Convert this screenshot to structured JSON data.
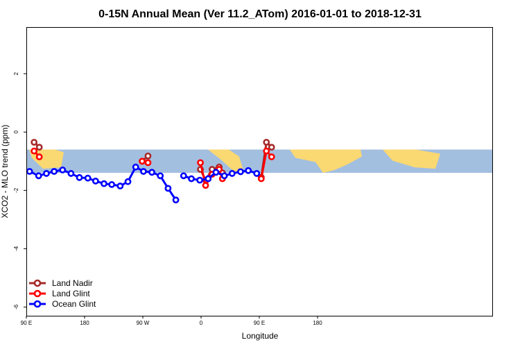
{
  "chart_data": {
    "type": "line",
    "title": "0-15N Annual Mean (Ver 11.2_ATom)   2016-01-01 to 2018-12-31",
    "xlabel": "Longitude",
    "ylabel": "XCO2 - MLO trend (ppm)",
    "xlim": [
      90,
      450
    ],
    "ylim": [
      -6.3,
      3.6
    ],
    "x_ticks": [
      {
        "value": 90,
        "label": "90 E"
      },
      {
        "value": 180,
        "label": "180"
      },
      {
        "value": 270,
        "label": "90 W"
      },
      {
        "value": 360,
        "label": "0"
      },
      {
        "value": 450,
        "label": "90 E"
      },
      {
        "value": 540,
        "label": "180"
      }
    ],
    "y_ticks": [
      {
        "value": 2,
        "label": "2"
      },
      {
        "value": 0,
        "label": "0"
      },
      {
        "value": -2,
        "label": "-2"
      },
      {
        "value": -4,
        "label": "-4"
      },
      {
        "value": -6,
        "label": "-6"
      }
    ],
    "legend_position": "bottom-left",
    "background_band": {
      "y_range": [
        -0.6,
        -1.4
      ],
      "color": "#a3bfe0",
      "land_color": "#fad872"
    },
    "series": [
      {
        "name": "Land Nadir",
        "color": "#a52a2a",
        "segments": [
          [
            [
              102,
              -0.35
            ],
            [
              110,
              -0.52
            ]
          ],
          [
            [
              269,
              -1.0
            ],
            [
              278,
              -0.82
            ]
          ],
          [
            [
              359,
              -1.28
            ],
            [
              367,
              -1.65
            ],
            [
              377,
              -1.28
            ],
            [
              388,
              -1.2
            ],
            [
              393,
              -1.4
            ]
          ],
          [
            [
              453,
              -1.55
            ],
            [
              461,
              -0.35
            ],
            [
              469,
              -0.52
            ]
          ]
        ]
      },
      {
        "name": "Land Glint",
        "color": "#ff0000",
        "segments": [
          [
            [
              102,
              -0.65
            ],
            [
              110,
              -0.85
            ]
          ],
          [
            [
              269,
              -1.0
            ],
            [
              278,
              -1.05
            ]
          ],
          [
            [
              359,
              -1.05
            ],
            [
              367,
              -1.83
            ],
            [
              377,
              -1.45
            ],
            [
              388,
              -1.28
            ],
            [
              393,
              -1.6
            ]
          ],
          [
            [
              453,
              -1.6
            ],
            [
              461,
              -0.65
            ],
            [
              469,
              -0.85
            ]
          ]
        ]
      },
      {
        "name": "Ocean Glint",
        "color": "#0000ff",
        "segments": [
          [
            [
              95,
              -1.35
            ],
            [
              109,
              -1.5
            ],
            [
              121,
              -1.42
            ],
            [
              133,
              -1.35
            ],
            [
              146,
              -1.3
            ],
            [
              159,
              -1.42
            ],
            [
              172,
              -1.56
            ],
            [
              185,
              -1.58
            ],
            [
              197,
              -1.68
            ],
            [
              210,
              -1.77
            ],
            [
              222,
              -1.8
            ],
            [
              235,
              -1.85
            ],
            [
              247,
              -1.7
            ],
            [
              259,
              -1.2
            ],
            [
              271,
              -1.35
            ],
            [
              284,
              -1.38
            ],
            [
              297,
              -1.5
            ],
            [
              309,
              -1.93
            ],
            [
              321,
              -2.33
            ]
          ],
          [
            [
              333,
              -1.5
            ],
            [
              345,
              -1.6
            ],
            [
              358,
              -1.65
            ],
            [
              371,
              -1.6
            ],
            [
              383,
              -1.38
            ],
            [
              396,
              -1.5
            ],
            [
              408,
              -1.42
            ],
            [
              421,
              -1.36
            ],
            [
              433,
              -1.32
            ],
            [
              446,
              -1.42
            ]
          ]
        ]
      }
    ]
  }
}
